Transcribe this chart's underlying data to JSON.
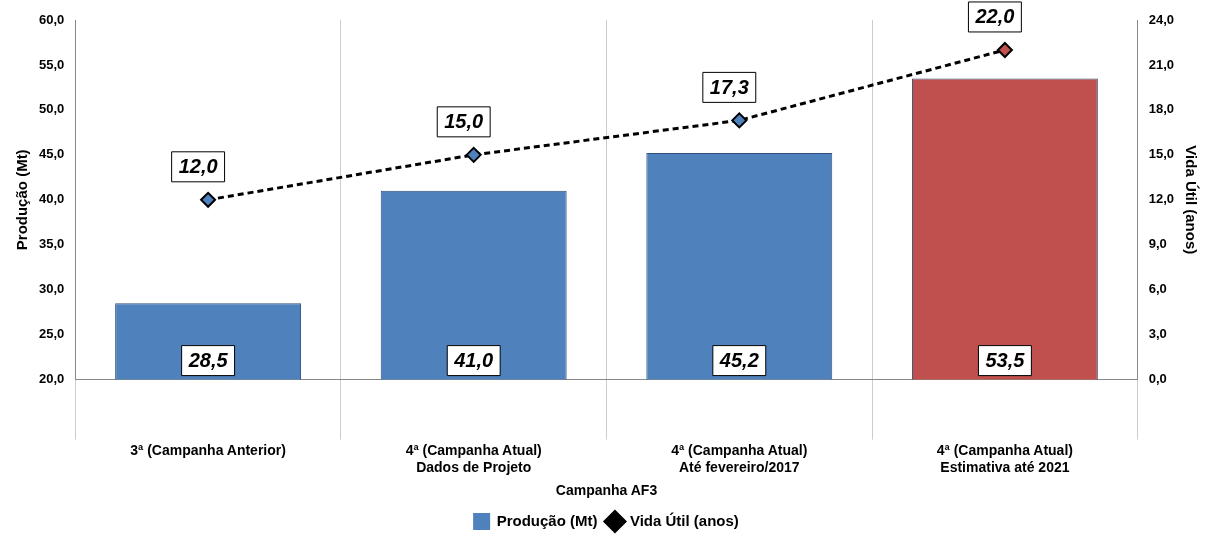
{
  "chart_data": {
    "type": "bar",
    "xlabel": "Campanha AF3",
    "ylabel": "Produção (Mt)",
    "y2label": "Vida Útil (anos)",
    "categories": [
      "3ª (Campanha Anterior)",
      "4ª (Campanha Atual)\nDados de Projeto",
      "4ª (Campanha Atual)\nAté fevereiro/2017",
      "4ª (Campanha Atual)\nEstimativa até 2021"
    ],
    "series": [
      {
        "name": "Produção (Mt)",
        "color": "#4f81bd",
        "colors": [
          "#4f81bd",
          "#4f81bd",
          "#4f81bd",
          "#c0504d"
        ],
        "values": [
          28.5,
          41.0,
          45.2,
          53.5
        ],
        "value_labels": [
          "28,5",
          "41,0",
          "45,2",
          "53,5"
        ]
      },
      {
        "name": "Vida Útil (anos)",
        "type": "line",
        "axis": "y2",
        "color": "#000000",
        "colors": [
          "#4f81bd",
          "#4f81bd",
          "#4f81bd",
          "#c0504d"
        ],
        "marker": "diamond",
        "line_style": "dashed",
        "values": [
          12.0,
          15.0,
          17.3,
          22.0
        ],
        "value_labels": [
          "12,0",
          "15,0",
          "17,3",
          "22,0"
        ]
      }
    ],
    "ylim": [
      20,
      60
    ],
    "yticks": [
      {
        "value": 20,
        "label": "20,0"
      },
      {
        "value": 25,
        "label": "25,0"
      },
      {
        "value": 30,
        "label": "30,0"
      },
      {
        "value": 35,
        "label": "35,0"
      },
      {
        "value": 40,
        "label": "40,0"
      },
      {
        "value": 45,
        "label": "45,0"
      },
      {
        "value": 50,
        "label": "50,0"
      },
      {
        "value": 55,
        "label": "55,0"
      },
      {
        "value": 60,
        "label": "60,0"
      }
    ],
    "y2lim": [
      0,
      24
    ],
    "y2ticks": [
      {
        "value": 0,
        "label": "0,0"
      },
      {
        "value": 3,
        "label": "3,0"
      },
      {
        "value": 6,
        "label": "6,0"
      },
      {
        "value": 9,
        "label": "9,0"
      },
      {
        "value": 12,
        "label": "12,0"
      },
      {
        "value": 15,
        "label": "15,0"
      },
      {
        "value": 18,
        "label": "18,0"
      },
      {
        "value": 21,
        "label": "21,0"
      },
      {
        "value": 24,
        "label": "24,0"
      }
    ],
    "grid": "x",
    "legend": "bottom"
  }
}
